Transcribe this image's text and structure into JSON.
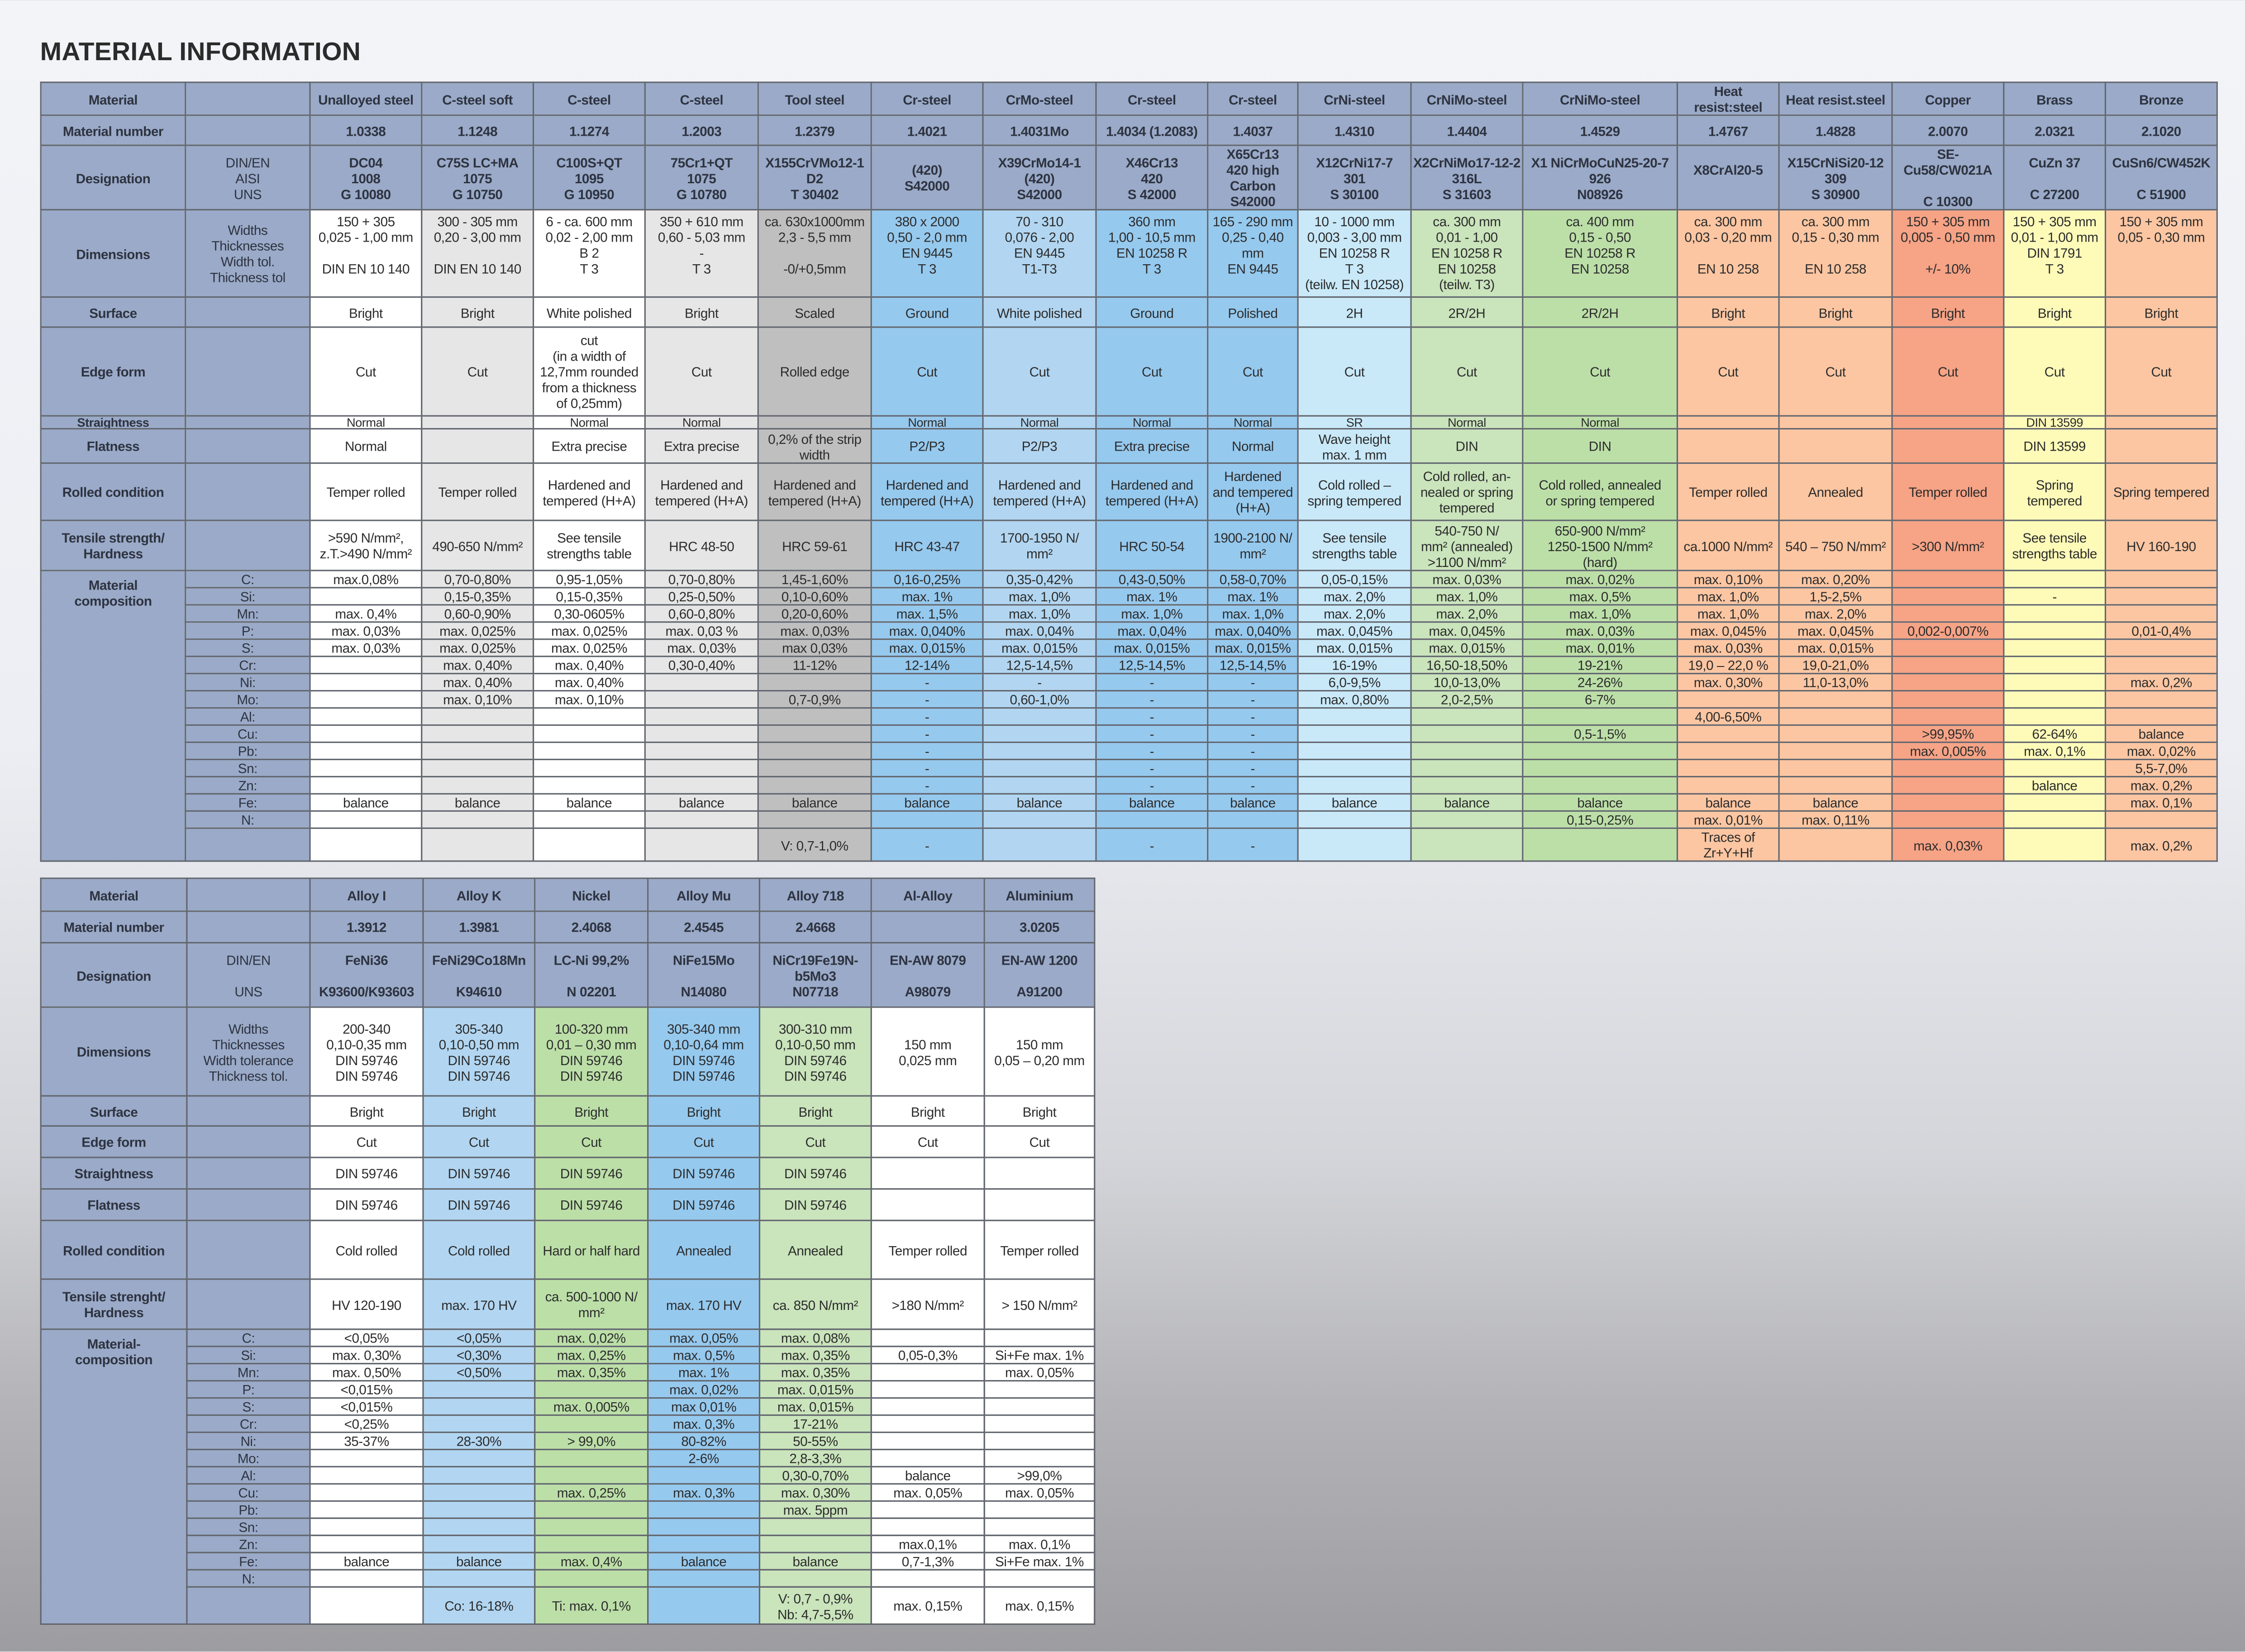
{
  "title": "MATERIAL INFORMATION",
  "header_color": "#9aaac8",
  "elements": [
    "C:",
    "Si:",
    "Mn:",
    "P:",
    "S:",
    "Cr:",
    "Ni:",
    "Mo:",
    "Al:",
    "Cu:",
    "Pb:",
    "Sn:",
    "Zn:",
    "Fe:",
    "N:"
  ],
  "top": {
    "labels": {
      "name": "Material",
      "number": "Material number",
      "designation": "Designation",
      "dimensions": "Dimensions",
      "surface": "Surface",
      "edge": "Edge form",
      "straightness": "Straightness",
      "flatness": "Flatness",
      "rolled": "Rolled condition",
      "tensile": "Tensile strength/\nHardness",
      "composition": "Material\ncomposition"
    },
    "sublabels": {
      "designation": "DIN/EN\nAISI\nUNS",
      "dimensions": "Widths\nThicknesses\nWidth tol.\nThickness tol"
    },
    "materials": [
      {
        "name": "Unalloyed steel",
        "number": "1.0338",
        "designation": "DC04\n1008\nG 10080",
        "dimensions": "150 + 305\n0,025 - 1,00 mm\n\nDIN EN 10 140",
        "surface": "Bright",
        "edge": "Cut",
        "straightness": "Normal",
        "flatness": "Normal",
        "rolled": "Temper rolled",
        "tensile": ">590 N/mm²,\nz.T.>490 N/mm²",
        "color": "#ffffff",
        "comp": [
          "max.0,08%",
          "",
          "max. 0,4%",
          "max. 0,03%",
          "max. 0,03%",
          "",
          "",
          "",
          "",
          "",
          "",
          "",
          "",
          "balance",
          "",
          ""
        ]
      },
      {
        "name": "C-steel soft",
        "number": "1.1248",
        "designation": "C75S LC+MA\n1075\nG 10750",
        "dimensions": "300 - 305 mm\n0,20 - 3,00 mm\n\nDIN EN 10 140",
        "surface": "Bright",
        "edge": "Cut",
        "straightness": "",
        "flatness": "",
        "rolled": "Temper rolled",
        "tensile": "490-650 N/mm²",
        "color": "#e6e6e7",
        "comp": [
          "0,70-0,80%",
          "0,15-0,35%",
          "0,60-0,90%",
          "max. 0,025%",
          "max. 0,025%",
          "max. 0,40%",
          "max. 0,40%",
          "max. 0,10%",
          "",
          "",
          "",
          "",
          "",
          "balance",
          "",
          ""
        ]
      },
      {
        "name": "C-steel",
        "number": "1.1274",
        "designation": "C100S+QT\n1095\nG 10950",
        "dimensions": "6 - ca. 600 mm\n0,02 - 2,00 mm\nB 2\nT 3",
        "surface": "White polished",
        "edge": "cut\n(in a width of\n12,7mm rounded\nfrom a thickness\nof 0,25mm)",
        "straightness": "Normal",
        "flatness": "Extra precise",
        "rolled": "Hardened and\ntempered (H+A)",
        "tensile": "See tensile\nstrengths table",
        "color": "#ffffff",
        "comp": [
          "0,95-1,05%",
          "0,15-0,35%",
          "0,30-0605%",
          "max. 0,025%",
          "max. 0,025%",
          "max. 0,40%",
          "max. 0,40%",
          "max. 0,10%",
          "",
          "",
          "",
          "",
          "",
          "balance",
          "",
          ""
        ]
      },
      {
        "name": "C-steel",
        "number": "1.2003",
        "designation": "75Cr1+QT\n1075\nG 10780",
        "dimensions": "350 + 610 mm\n0,60 - 5,03 mm\n-\nT 3",
        "surface": "Bright",
        "edge": "Cut",
        "straightness": "Normal",
        "flatness": "Extra precise",
        "rolled": "Hardened and\ntempered (H+A)",
        "tensile": "HRC 48-50",
        "color": "#e6e6e7",
        "comp": [
          "0,70-0,80%",
          "0,25-0,50%",
          "0,60-0,80%",
          "max. 0,03 %",
          "max. 0,03%",
          "0,30-0,40%",
          "",
          "",
          "",
          "",
          "",
          "",
          "",
          "balance",
          "",
          ""
        ]
      },
      {
        "name": "Tool steel",
        "number": "1.2379",
        "designation": "X155CrVMo12-1\nD2\nT 30402",
        "dimensions": "ca. 630x1000mm\n2,3 - 5,5 mm\n\n-0/+0,5mm",
        "surface": "Scaled",
        "edge": "Rolled edge",
        "straightness": "",
        "flatness": "0,2% of the strip\nwidth",
        "rolled": "Hardened and\ntempered (H+A)",
        "tensile": "HRC 59-61",
        "color": "#bfbfc0",
        "comp": [
          "1,45-1,60%",
          "0,10-0,60%",
          "0,20-0,60%",
          "max. 0,03%",
          "max 0,03%",
          "11-12%",
          "",
          "0,7-0,9%",
          "",
          "",
          "",
          "",
          "",
          "balance",
          "",
          "V: 0,7-1,0%"
        ]
      },
      {
        "name": "Cr-steel",
        "number": "1.4021",
        "designation": "(420)\nS42000",
        "dimensions": "380 x 2000\n0,50 - 2,0 mm\nEN 9445\nT 3",
        "surface": "Ground",
        "edge": "Cut",
        "straightness": "Normal",
        "flatness": "P2/P3",
        "rolled": "Hardened and\ntempered (H+A)",
        "tensile": "HRC 43-47",
        "color": "#96c9ee",
        "comp": [
          "0,16-0,25%",
          "max. 1%",
          "max. 1,5%",
          "max. 0,040%",
          "max. 0,015%",
          "12-14%",
          "-",
          "-",
          "-",
          "-",
          "-",
          "-",
          "-",
          "balance",
          "",
          "-"
        ]
      },
      {
        "name": "CrMo-steel",
        "number": "1.4031Mo",
        "designation": "X39CrMo14-1\n(420)\nS42000",
        "dimensions": "70 - 310\n0,076 - 2,00\nEN 9445\nT1-T3",
        "surface": "White polished",
        "edge": "Cut",
        "straightness": "Normal",
        "flatness": "P2/P3",
        "rolled": "Hardened and\ntempered (H+A)",
        "tensile": "1700-1950 N/\nmm²",
        "color": "#b2d6f1",
        "comp": [
          "0,35-0,42%",
          "max. 1,0%",
          "max. 1,0%",
          "max. 0,04%",
          "max. 0,015%",
          "12,5-14,5%",
          "-",
          "0,60-1,0%",
          "",
          "",
          "",
          "",
          "",
          "balance",
          "",
          ""
        ]
      },
      {
        "name": "Cr-steel",
        "number": "1.4034 (1.2083)",
        "designation": "X46Cr13\n420\nS 42000",
        "dimensions": "360 mm\n1,00 - 10,5 mm\nEN 10258 R\nT 3",
        "surface": "Ground",
        "edge": "Cut",
        "straightness": "Normal",
        "flatness": "Extra precise",
        "rolled": "Hardened and\ntempered (H+A)",
        "tensile": "HRC 50-54",
        "color": "#96c9ee",
        "comp": [
          "0,43-0,50%",
          "max. 1%",
          "max. 1,0%",
          "max. 0,04%",
          "max. 0,015%",
          "12,5-14,5%",
          "-",
          "-",
          "-",
          "-",
          "-",
          "-",
          "-",
          "balance",
          "",
          "-"
        ]
      },
      {
        "name": "Cr-steel",
        "number": "1.4037",
        "designation": "X65Cr13\n420 high\nCarbon\nS42000",
        "dimensions": "165 - 290 mm\n0,25 - 0,40\nmm\nEN 9445",
        "surface": "Polished",
        "edge": "Cut",
        "straightness": "Normal",
        "flatness": "Normal",
        "rolled": "Hardened\nand tempered\n(H+A)",
        "tensile": "1900-2100 N/\nmm²",
        "color": "#96c9ee",
        "comp": [
          "0,58-0,70%",
          "max. 1%",
          "max. 1,0%",
          "max. 0,040%",
          "max. 0,015%",
          "12,5-14,5%",
          "-",
          "-",
          "-",
          "-",
          "-",
          "-",
          "-",
          "balance",
          "",
          "-"
        ]
      },
      {
        "name": "CrNi-steel",
        "number": "1.4310",
        "designation": "X12CrNi17-7\n301\nS 30100",
        "dimensions": "10 - 1000 mm\n0,003 - 3,00 mm\nEN 10258 R\nT 3\n(teilw. EN 10258)",
        "surface": "2H",
        "edge": "Cut",
        "straightness": "SR",
        "flatness": "Wave height\nmax. 1 mm",
        "rolled": "Cold rolled –\nspring tempered",
        "tensile": "See tensile\nstrengths table",
        "color": "#c9e9f9",
        "comp": [
          "0,05-0,15%",
          "max. 2,0%",
          "max. 2,0%",
          "max. 0,045%",
          "max. 0,015%",
          "16-19%",
          "6,0-9,5%",
          "max. 0,80%",
          "",
          "",
          "",
          "",
          "",
          "balance",
          "",
          ""
        ]
      },
      {
        "name": "CrNiMo-steel",
        "number": "1.4404",
        "designation": "X2CrNiMo17-12-2\n316L\nS 31603",
        "dimensions": "ca. 300 mm\n0,01 - 1,00\nEN 10258 R\nEN 10258\n(teilw. T3)",
        "surface": "2R/2H",
        "edge": "Cut",
        "straightness": "Normal",
        "flatness": "DIN",
        "rolled": "Cold rolled, an-\nnealed or spring\ntempered",
        "tensile": "540-750 N/\nmm² (annealed)\n>1100 N/mm²",
        "color": "#cae4bc",
        "comp": [
          "max. 0,03%",
          "max. 1,0%",
          "max. 2,0%",
          "max. 0,045%",
          "max. 0,015%",
          "16,50-18,50%",
          "10,0-13,0%",
          "2,0-2,5%",
          "",
          "",
          "",
          "",
          "",
          "balance",
          "",
          ""
        ]
      },
      {
        "name": "CrNiMo-steel",
        "number": "1.4529",
        "designation": "X1 NiCrMoCuN25-20-7\n926\nN08926",
        "dimensions": "ca. 400 mm\n0,15 - 0,50\nEN 10258 R\nEN 10258",
        "surface": "2R/2H",
        "edge": "Cut",
        "straightness": "Normal",
        "flatness": "DIN",
        "rolled": "Cold rolled, annealed\nor spring tempered",
        "tensile": "650-900 N/mm²\n1250-1500 N/mm²\n(hard)",
        "color": "#bcdfa8",
        "comp": [
          "max. 0,02%",
          "max. 0,5%",
          "max. 1,0%",
          "max. 0,03%",
          "max. 0,01%",
          "19-21%",
          "24-26%",
          "6-7%",
          "",
          "0,5-1,5%",
          "",
          "",
          "",
          "balance",
          "0,15-0,25%",
          ""
        ]
      },
      {
        "name": "Heat resist:steel",
        "number": "1.4767",
        "designation": "X8CrAl20-5\n\n",
        "dimensions": "ca. 300 mm\n0,03 - 0,20 mm\n\nEN 10 258",
        "surface": "Bright",
        "edge": "Cut",
        "straightness": "",
        "flatness": "",
        "rolled": "Temper rolled",
        "tensile": "ca.1000 N/mm²",
        "color": "#fcc6a2",
        "comp": [
          "max. 0,10%",
          "max. 1,0%",
          "max. 1,0%",
          "max. 0,045%",
          "max. 0,03%",
          "19,0 – 22,0 %",
          "max. 0,30%",
          "",
          "4,00-6,50%",
          "",
          "",
          "",
          "",
          "balance",
          "max. 0,01%",
          "Traces of\nZr+Y+Hf"
        ]
      },
      {
        "name": "Heat resist.steel",
        "number": "1.4828",
        "designation": "X15CrNiSi20-12\n309\nS 30900",
        "dimensions": "ca. 300 mm\n0,15 - 0,30 mm\n\nEN 10 258",
        "surface": "Bright",
        "edge": "Cut",
        "straightness": "",
        "flatness": "",
        "rolled": "Annealed",
        "tensile": "540 – 750 N/mm²",
        "color": "#fcc6a2",
        "comp": [
          "max. 0,20%",
          "1,5-2,5%",
          "max. 2,0%",
          "max. 0,045%",
          "max. 0,015%",
          "19,0-21,0%",
          "11,0-13,0%",
          "",
          "",
          "",
          "",
          "",
          "",
          "balance",
          "max. 0,11%",
          ""
        ]
      },
      {
        "name": "Copper",
        "number": "2.0070",
        "designation": "SE-Cu58/CW021A\n\nC 10300",
        "dimensions": "150 + 305 mm\n0,005 - 0,50 mm\n\n+/- 10%",
        "surface": "Bright",
        "edge": "Cut",
        "straightness": "",
        "flatness": "",
        "rolled": "Temper rolled",
        "tensile": ">300 N/mm²",
        "color": "#f6a386",
        "comp": [
          "",
          "",
          "",
          "0,002-0,007%",
          "",
          "",
          "",
          "",
          "",
          ">99,95%",
          "max. 0,005%",
          "",
          "",
          "",
          "",
          "max. 0,03%"
        ]
      },
      {
        "name": "Brass",
        "number": "2.0321",
        "designation": "CuZn 37\n\nC 27200",
        "dimensions": "150 + 305 mm\n0,01 - 1,00 mm\nDIN 1791\nT 3",
        "surface": "Bright",
        "edge": "Cut",
        "straightness": "DIN 13599",
        "flatness": "DIN 13599",
        "rolled": "Spring\ntempered",
        "tensile": "See tensile\nstrengths table",
        "color": "#fefbb9",
        "comp": [
          "",
          "-",
          "",
          "",
          "",
          "",
          "",
          "",
          "",
          "62-64%",
          "max. 0,1%",
          "",
          "balance",
          "",
          "",
          ""
        ]
      },
      {
        "name": "Bronze",
        "number": "2.1020",
        "designation": "CuSn6/CW452K\n\nC 51900",
        "dimensions": "150 + 305 mm\n0,05 - 0,30 mm",
        "surface": "Bright",
        "edge": "Cut",
        "straightness": "",
        "flatness": "",
        "rolled": "Spring tempered",
        "tensile": "HV 160-190",
        "color": "#fcc6a2",
        "comp": [
          "",
          "",
          "",
          "0,01-0,4%",
          "",
          "",
          "max. 0,2%",
          "",
          "",
          "balance",
          "max. 0,02%",
          "5,5-7,0%",
          "max. 0,2%",
          "max. 0,1%",
          "",
          "max. 0,2%"
        ]
      }
    ]
  },
  "bottom": {
    "labels": {
      "name": "Material",
      "number": "Material number",
      "designation": "Designation",
      "dimensions": "Dimensions",
      "surface": "Surface",
      "edge": "Edge form",
      "straightness": "Straightness",
      "flatness": "Flatness",
      "rolled": "Rolled condition",
      "tensile": "Tensile strenght/\nHardness",
      "composition": "Material-\ncomposition"
    },
    "sublabels": {
      "designation": "DIN/EN\n\nUNS",
      "dimensions": "Widths\nThicknesses\nWidth tolerance\nThickness tol."
    },
    "materials": [
      {
        "name": "Alloy I",
        "number": "1.3912",
        "designation": "FeNi36\n\nK93600/K93603",
        "dimensions": "200-340\n0,10-0,35 mm\nDIN 59746\nDIN 59746",
        "surface": "Bright",
        "edge": "Cut",
        "straightness": "DIN 59746",
        "flatness": "DIN 59746",
        "rolled": "Cold rolled",
        "tensile": "HV 120-190",
        "color": "#ffffff",
        "comp": [
          "<0,05%",
          "max. 0,30%",
          "max. 0,50%",
          "<0,015%",
          "<0,015%",
          "<0,25%",
          "35-37%",
          "",
          "",
          "",
          "",
          "",
          "",
          "balance",
          "",
          ""
        ]
      },
      {
        "name": "Alloy K",
        "number": "1.3981",
        "designation": "FeNi29Co18Mn\n\nK94610",
        "dimensions": "305-340\n0,10-0,50 mm\nDIN 59746\nDIN 59746",
        "surface": "Bright",
        "edge": "Cut",
        "straightness": "DIN 59746",
        "flatness": "DIN 59746",
        "rolled": "Cold rolled",
        "tensile": "max. 170 HV",
        "color": "#b2d6f1",
        "comp": [
          "<0,05%",
          "<0,30%",
          "<0,50%",
          "",
          "",
          "",
          "28-30%",
          "",
          "",
          "",
          "",
          "",
          "",
          "balance",
          "",
          "Co: 16-18%"
        ]
      },
      {
        "name": "Nickel",
        "number": "2.4068",
        "designation": "LC-Ni 99,2%\n\nN 02201",
        "dimensions": "100-320 mm\n0,01 – 0,30 mm\nDIN 59746\nDIN 59746",
        "surface": "Bright",
        "edge": "Cut",
        "straightness": "DIN 59746",
        "flatness": "DIN 59746",
        "rolled": "Hard or half hard",
        "tensile": "ca. 500-1000 N/\nmm²",
        "color": "#bcdfa8",
        "comp": [
          "max. 0,02%",
          "max. 0,25%",
          "max. 0,35%",
          "",
          "max. 0,005%",
          "",
          "> 99,0%",
          "",
          "",
          "max. 0,25%",
          "",
          "",
          "",
          "max. 0,4%",
          "",
          "Ti: max. 0,1%"
        ]
      },
      {
        "name": "Alloy Mu",
        "number": "2.4545",
        "designation": "NiFe15Mo\n\nN14080",
        "dimensions": "305-340 mm\n0,10-0,64 mm\nDIN 59746\nDIN 59746",
        "surface": "Bright",
        "edge": "Cut",
        "straightness": "DIN 59746",
        "flatness": "DIN 59746",
        "rolled": "Annealed",
        "tensile": "max. 170 HV",
        "color": "#96c9ee",
        "comp": [
          "max. 0,05%",
          "max. 0,5%",
          "max. 1%",
          "max. 0,02%",
          "max 0,01%",
          "max. 0,3%",
          "80-82%",
          "2-6%",
          "",
          "max. 0,3%",
          "",
          "",
          "",
          "balance",
          "",
          ""
        ]
      },
      {
        "name": "Alloy 718",
        "number": "2.4668",
        "designation": "NiCr19Fe19N-\nb5Mo3\nN07718",
        "dimensions": "300-310 mm\n0,10-0,50 mm\nDIN 59746\nDIN 59746",
        "surface": "Bright",
        "edge": "Cut",
        "straightness": "DIN 59746",
        "flatness": "DIN 59746",
        "rolled": "Annealed",
        "tensile": "ca. 850 N/mm²",
        "color": "#cae4bc",
        "comp": [
          "max. 0,08%",
          "max. 0,35%",
          "max. 0,35%",
          "max. 0,015%",
          "max. 0,015%",
          "17-21%",
          "50-55%",
          "2,8-3,3%",
          "0,30-0,70%",
          "max. 0,30%",
          "max. 5ppm",
          "",
          "",
          "balance",
          "",
          "V: 0,7 - 0,9%\nNb: 4,7-5,5%"
        ]
      },
      {
        "name": "Al-Alloy",
        "number": "",
        "designation": "EN-AW 8079\n\nA98079",
        "dimensions": "150 mm\n0,025 mm",
        "surface": "Bright",
        "edge": "Cut",
        "straightness": "",
        "flatness": "",
        "rolled": "Temper rolled",
        "tensile": ">180 N/mm²",
        "color": "#ffffff",
        "comp": [
          "",
          "0,05-0,3%",
          "",
          "",
          "",
          "",
          "",
          "",
          "balance",
          "max. 0,05%",
          "",
          "",
          "max.0,1%",
          "0,7-1,3%",
          "",
          "max. 0,15%"
        ]
      },
      {
        "name": "Aluminium",
        "number": "3.0205",
        "designation": "EN-AW 1200\n\nA91200",
        "dimensions": "150 mm\n0,05 – 0,20 mm",
        "surface": "Bright",
        "edge": "Cut",
        "straightness": "",
        "flatness": "",
        "rolled": "Temper rolled",
        "tensile": "> 150 N/mm²",
        "color": "#ffffff",
        "comp": [
          "",
          "Si+Fe max. 1%",
          "max. 0,05%",
          "",
          "",
          "",
          "",
          "",
          ">99,0%",
          "max. 0,05%",
          "",
          "",
          "max. 0,1%",
          "Si+Fe max. 1%",
          "",
          "max. 0,15%"
        ]
      }
    ]
  }
}
